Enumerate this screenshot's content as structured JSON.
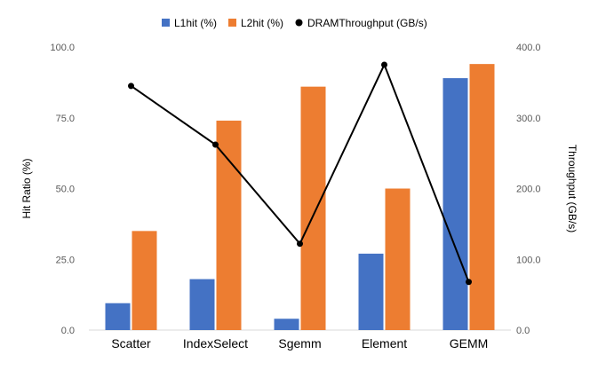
{
  "chart_data": {
    "type": "bar",
    "categories": [
      "Scatter",
      "IndexSelect",
      "Sgemm",
      "Element",
      "GEMM"
    ],
    "series": [
      {
        "name": "L1hit (%)",
        "type": "bar",
        "axis": "left",
        "color": "#4472C4",
        "values": [
          9.5,
          18,
          4,
          27,
          89
        ]
      },
      {
        "name": "L2hit (%)",
        "type": "bar",
        "axis": "left",
        "color": "#ED7D31",
        "values": [
          35,
          74,
          86,
          50,
          94
        ]
      },
      {
        "name": "DRAMThroughput (GB/s)",
        "type": "line",
        "axis": "right",
        "color": "#000000",
        "values": [
          345,
          262,
          122,
          375,
          68
        ]
      }
    ],
    "title": "",
    "xlabel": "",
    "ylabel": "Hit Ratio (%)",
    "y2label": "Throughput (GB/s)",
    "ylim": [
      0,
      100
    ],
    "y2lim": [
      0,
      400
    ],
    "yticks": [
      "0.0",
      "25.0",
      "50.0",
      "75.0",
      "100.0"
    ],
    "y2ticks": [
      "0.0",
      "100.0",
      "200.0",
      "300.0",
      "400.0"
    ],
    "legend_position": "top",
    "grid": false
  }
}
